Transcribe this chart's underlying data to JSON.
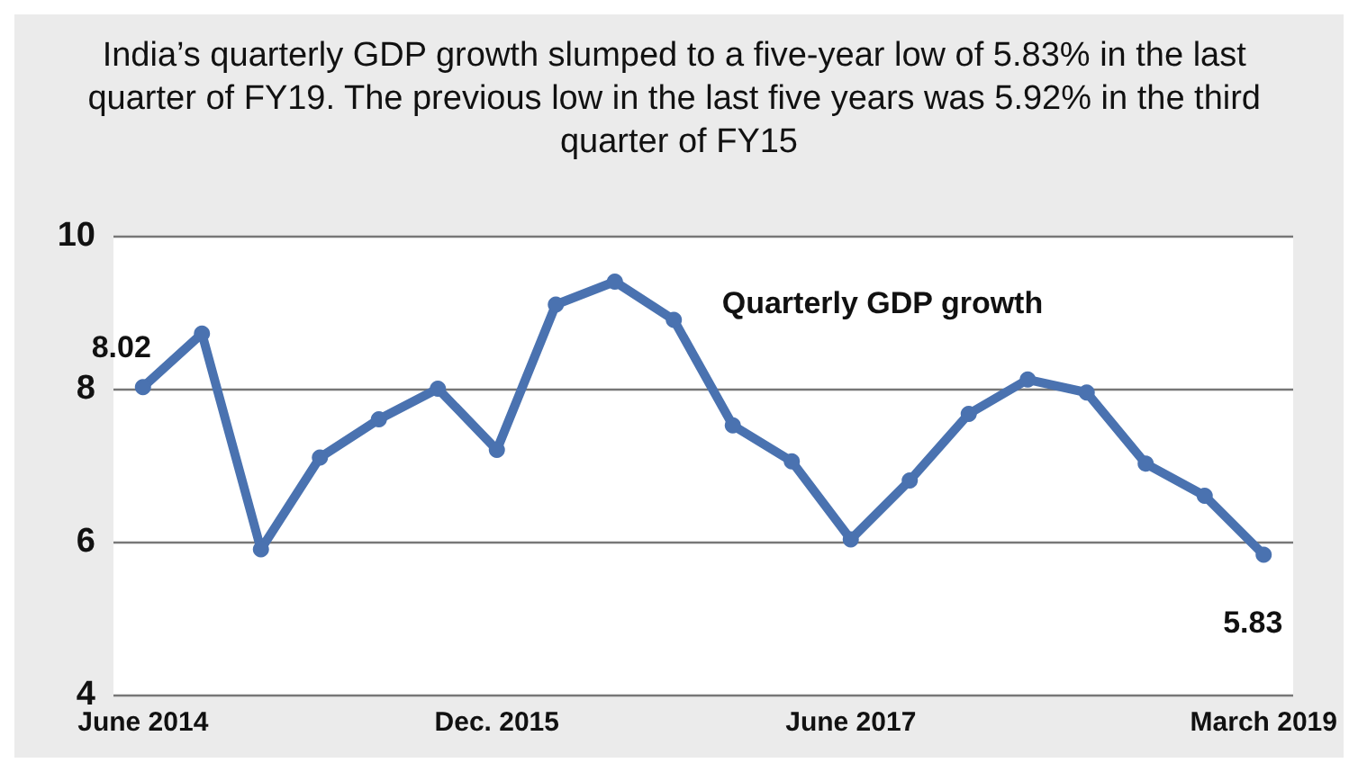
{
  "chart_data": {
    "type": "line",
    "title": "India’s quarterly GDP growth slumped to a five-year low of 5.83% in the last quarter of FY19. The previous low in the last five years was 5.92% in the third quarter of FY15",
    "categories": [
      "June 2014",
      null,
      null,
      null,
      null,
      null,
      "Dec. 2015",
      null,
      null,
      null,
      null,
      null,
      "June 2017",
      null,
      null,
      null,
      null,
      null,
      null,
      "March 2019"
    ],
    "series": [
      {
        "name": "Quarterly GDP growth",
        "color": "#4a72b0",
        "values": [
          8.02,
          8.72,
          5.9,
          7.1,
          7.6,
          8.0,
          7.2,
          9.1,
          9.4,
          8.9,
          7.52,
          7.05,
          6.03,
          6.8,
          7.67,
          8.12,
          7.95,
          7.02,
          6.6,
          5.83
        ]
      }
    ],
    "annotations": [
      {
        "text": "8.02",
        "x": "June 2014",
        "y": 8.02
      },
      {
        "text": "5.83",
        "x": "March 2019",
        "y": 5.83
      }
    ],
    "ylim": [
      4,
      10
    ],
    "yticks": [
      4,
      6,
      8,
      10
    ],
    "grid": "y",
    "legend": false,
    "marker": "circle",
    "line_style": "solid"
  }
}
